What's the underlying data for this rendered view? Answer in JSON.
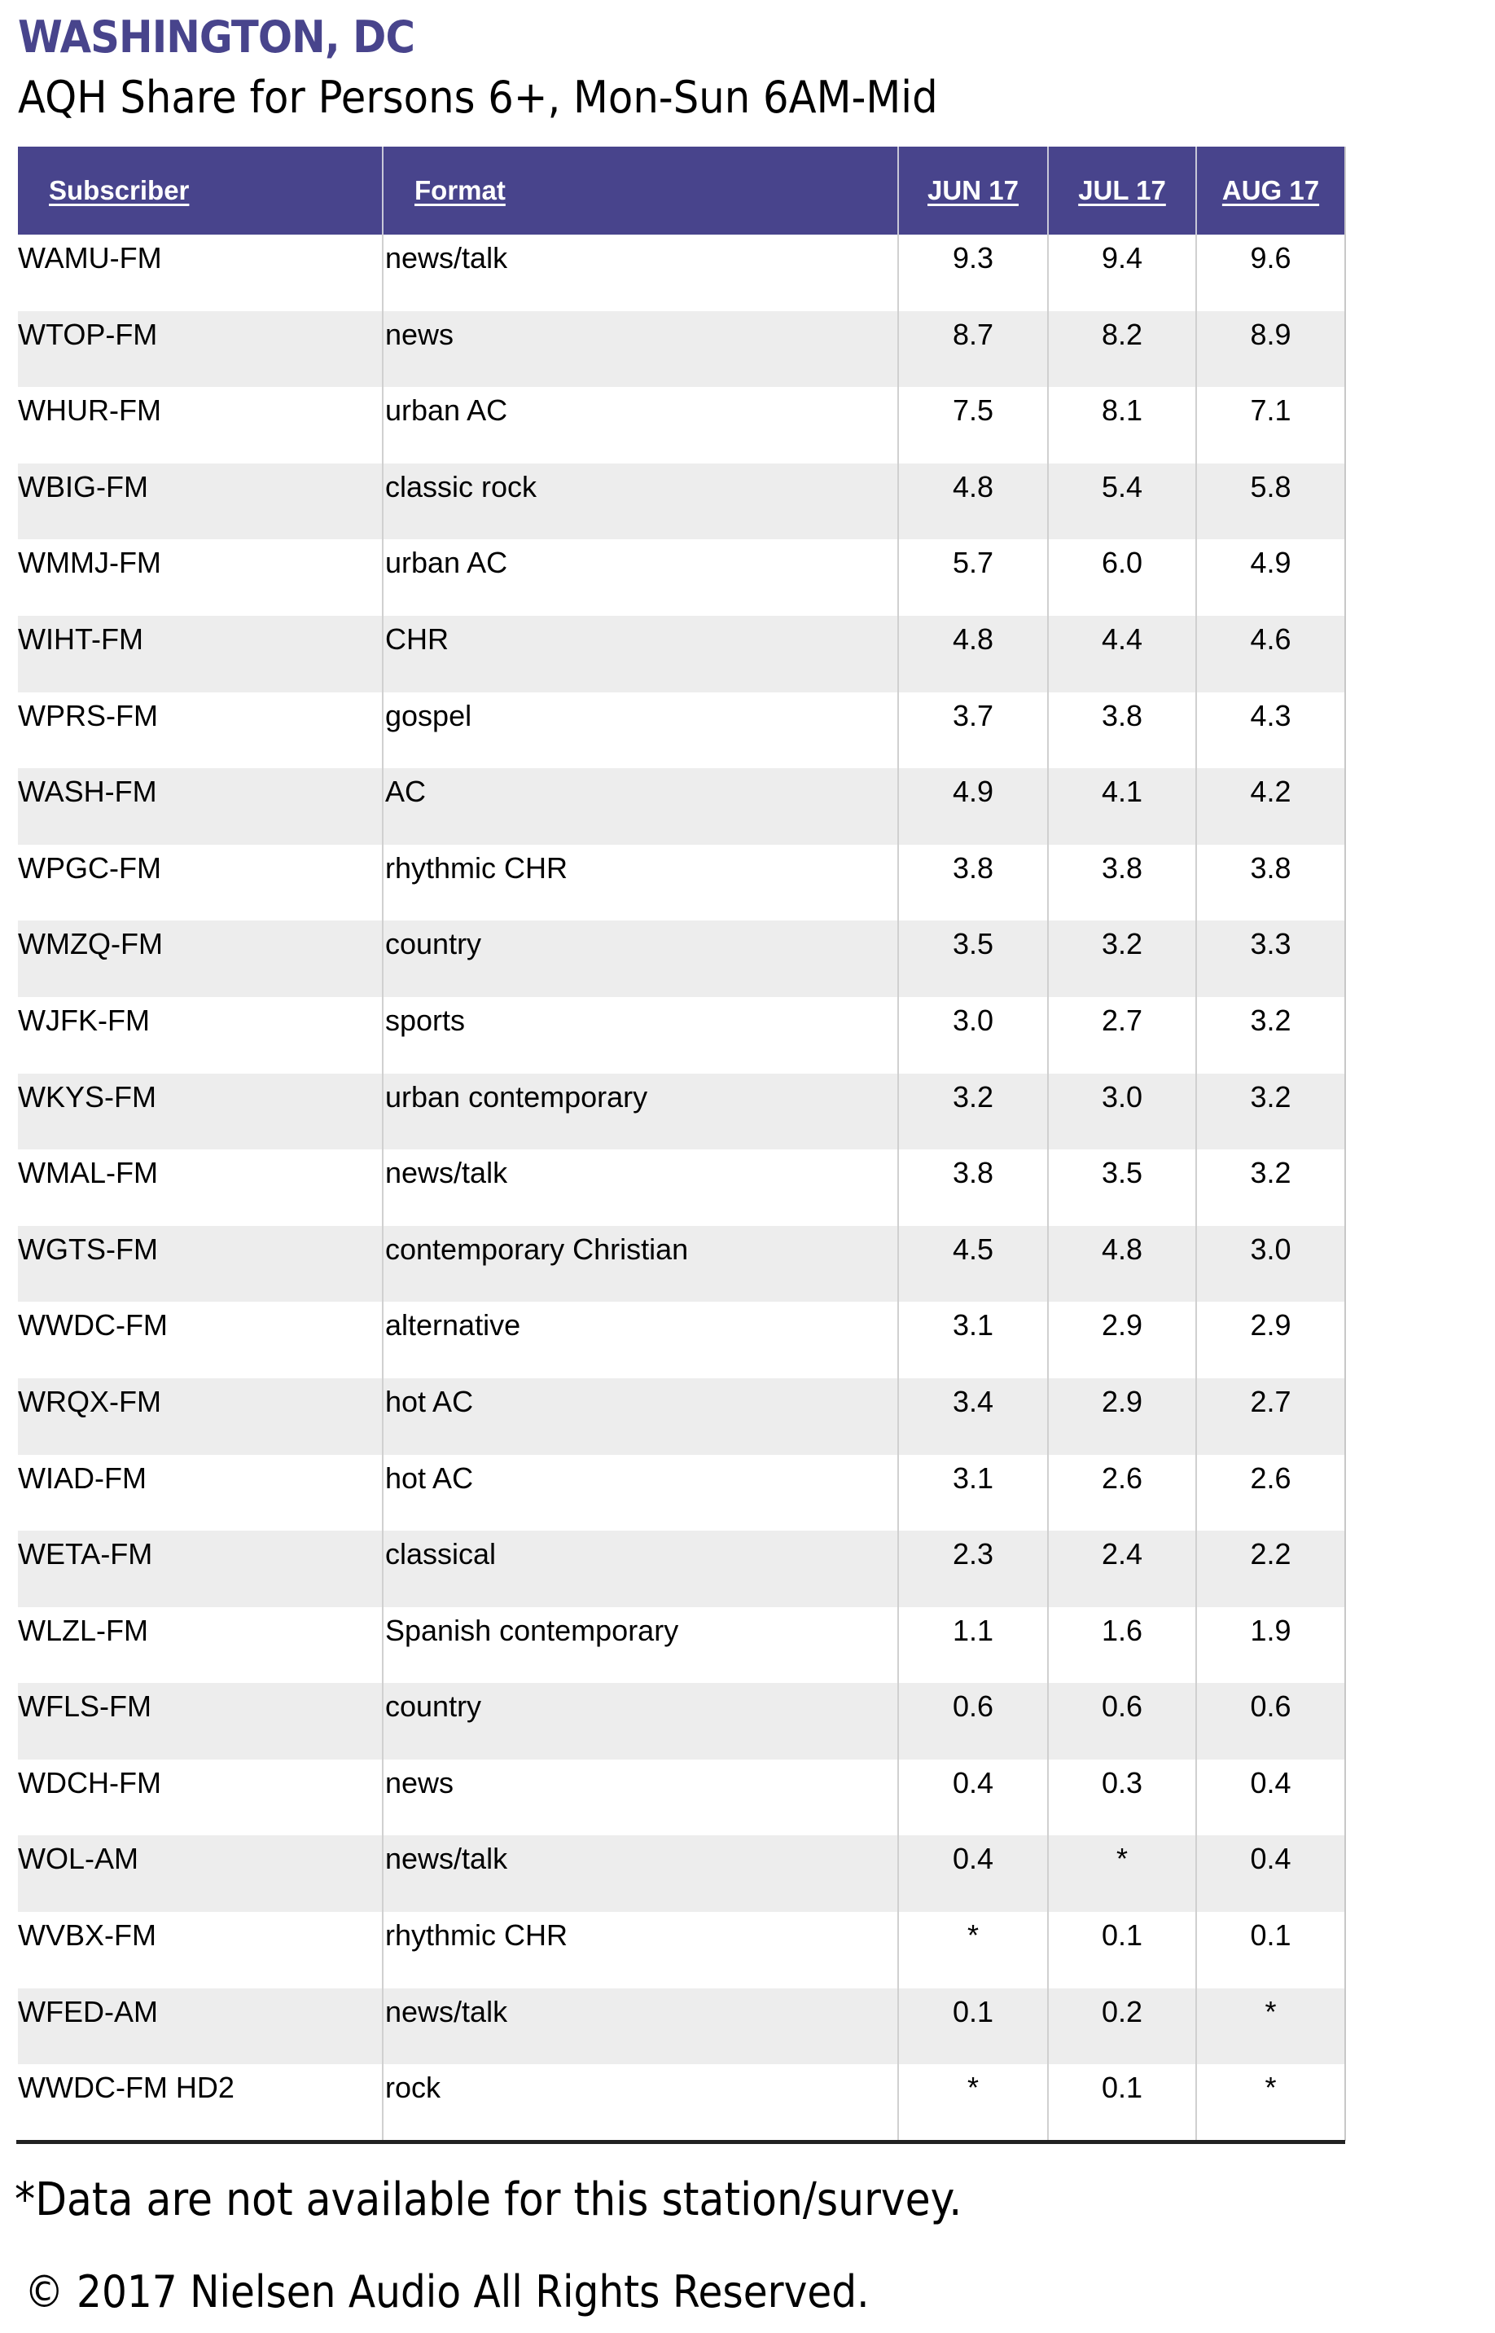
{
  "title": "WASHINGTON, DC",
  "subtitle": "AQH Share for Persons 6+, Mon-Sun 6AM-Mid",
  "colors": {
    "header_bg": "#48448c",
    "title": "#48448c",
    "alt_row": "#ededed"
  },
  "table": {
    "columns": [
      "Subscriber",
      "Format",
      "JUN 17",
      "JUL 17",
      "AUG 17"
    ],
    "rows": [
      [
        "WAMU-FM",
        "news/talk",
        "9.3",
        "9.4",
        "9.6"
      ],
      [
        "WTOP-FM",
        "news",
        "8.7",
        "8.2",
        "8.9"
      ],
      [
        "WHUR-FM",
        "urban AC",
        "7.5",
        "8.1",
        "7.1"
      ],
      [
        "WBIG-FM",
        "classic rock",
        "4.8",
        "5.4",
        "5.8"
      ],
      [
        "WMMJ-FM",
        "urban AC",
        "5.7",
        "6.0",
        "4.9"
      ],
      [
        "WIHT-FM",
        "CHR",
        "4.8",
        "4.4",
        "4.6"
      ],
      [
        "WPRS-FM",
        "gospel",
        "3.7",
        "3.8",
        "4.3"
      ],
      [
        "WASH-FM",
        "AC",
        "4.9",
        "4.1",
        "4.2"
      ],
      [
        "WPGC-FM",
        "rhythmic CHR",
        "3.8",
        "3.8",
        "3.8"
      ],
      [
        "WMZQ-FM",
        "country",
        "3.5",
        "3.2",
        "3.3"
      ],
      [
        "WJFK-FM",
        "sports",
        "3.0",
        "2.7",
        "3.2"
      ],
      [
        "WKYS-FM",
        "urban contemporary",
        "3.2",
        "3.0",
        "3.2"
      ],
      [
        "WMAL-FM",
        "news/talk",
        "3.8",
        "3.5",
        "3.2"
      ],
      [
        "WGTS-FM",
        "contemporary Christian",
        "4.5",
        "4.8",
        "3.0"
      ],
      [
        "WWDC-FM",
        "alternative",
        "3.1",
        "2.9",
        "2.9"
      ],
      [
        "WRQX-FM",
        "hot AC",
        "3.4",
        "2.9",
        "2.7"
      ],
      [
        "WIAD-FM",
        "hot AC",
        "3.1",
        "2.6",
        "2.6"
      ],
      [
        "WETA-FM",
        "classical",
        "2.3",
        "2.4",
        "2.2"
      ],
      [
        "WLZL-FM",
        "Spanish contemporary",
        "1.1",
        "1.6",
        "1.9"
      ],
      [
        "WFLS-FM",
        "country",
        "0.6",
        "0.6",
        "0.6"
      ],
      [
        "WDCH-FM",
        "news",
        "0.4",
        "0.3",
        "0.4"
      ],
      [
        "WOL-AM",
        "news/talk",
        "0.4",
        "*",
        "0.4"
      ],
      [
        "WVBX-FM",
        "rhythmic CHR",
        "*",
        "0.1",
        "0.1"
      ],
      [
        "WFED-AM",
        "news/talk",
        "0.1",
        "0.2",
        "*"
      ],
      [
        "WWDC-FM HD2",
        "rock",
        "*",
        "0.1",
        "*"
      ]
    ]
  },
  "footnote": "*Data are not available for this station/survey.",
  "copyright": "© 2017 Nielsen Audio All Rights Reserved."
}
